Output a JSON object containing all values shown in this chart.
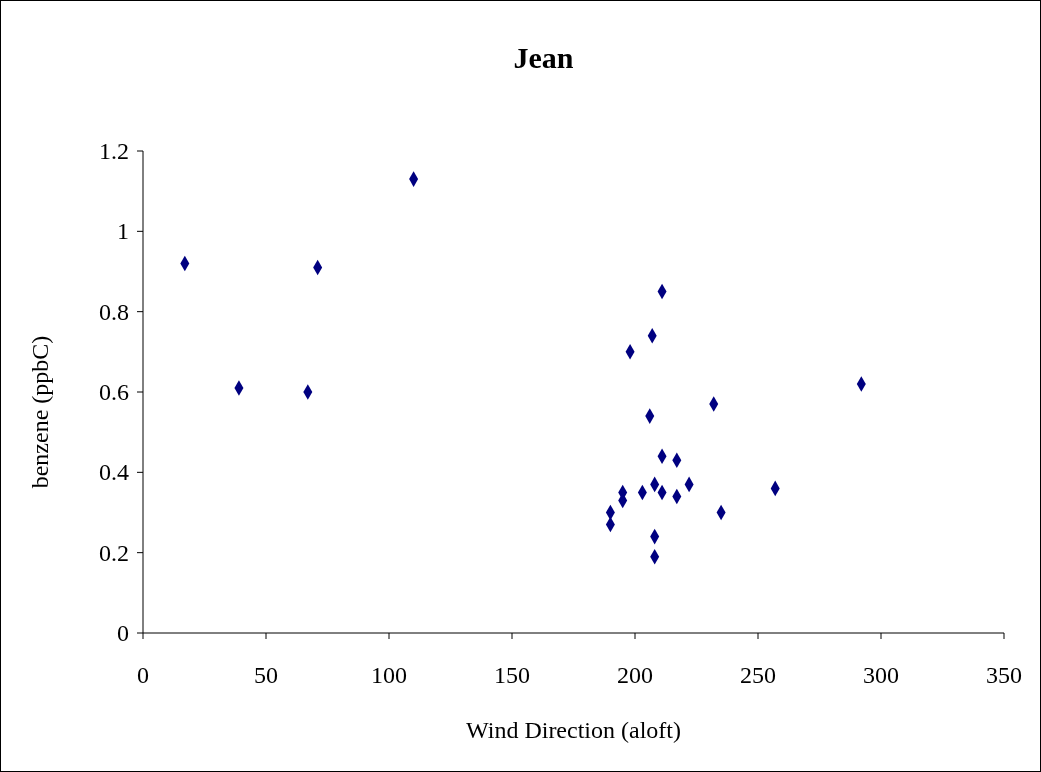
{
  "chart_data": {
    "type": "scatter",
    "title": "Jean",
    "xlabel": "Wind Direction (aloft)",
    "ylabel": "benzene (ppbC)",
    "xlim": [
      0,
      350
    ],
    "xticks": [
      0,
      50,
      100,
      150,
      200,
      250,
      300,
      350
    ],
    "ylim": [
      0,
      1.2
    ],
    "yticks": [
      0,
      0.2,
      0.4,
      0.6,
      0.8,
      1,
      {
        "value": 1.2,
        "label": "1.2"
      }
    ],
    "grid": false,
    "marker": "diamond",
    "series": [
      {
        "color": "#000080",
        "x": [
          17,
          39,
          67,
          71,
          110,
          211,
          207,
          198,
          206,
          232,
          292,
          211,
          217,
          222,
          208,
          211,
          217,
          203,
          195,
          195,
          190,
          190,
          208,
          208,
          235,
          257
        ],
        "values": [
          0.92,
          0.61,
          0.6,
          0.91,
          1.13,
          0.85,
          0.74,
          0.7,
          0.54,
          0.57,
          0.62,
          0.44,
          0.43,
          0.37,
          0.37,
          0.35,
          0.34,
          0.35,
          0.35,
          0.33,
          0.3,
          0.27,
          0.24,
          0.19,
          0.3,
          0.36
        ]
      }
    ]
  }
}
